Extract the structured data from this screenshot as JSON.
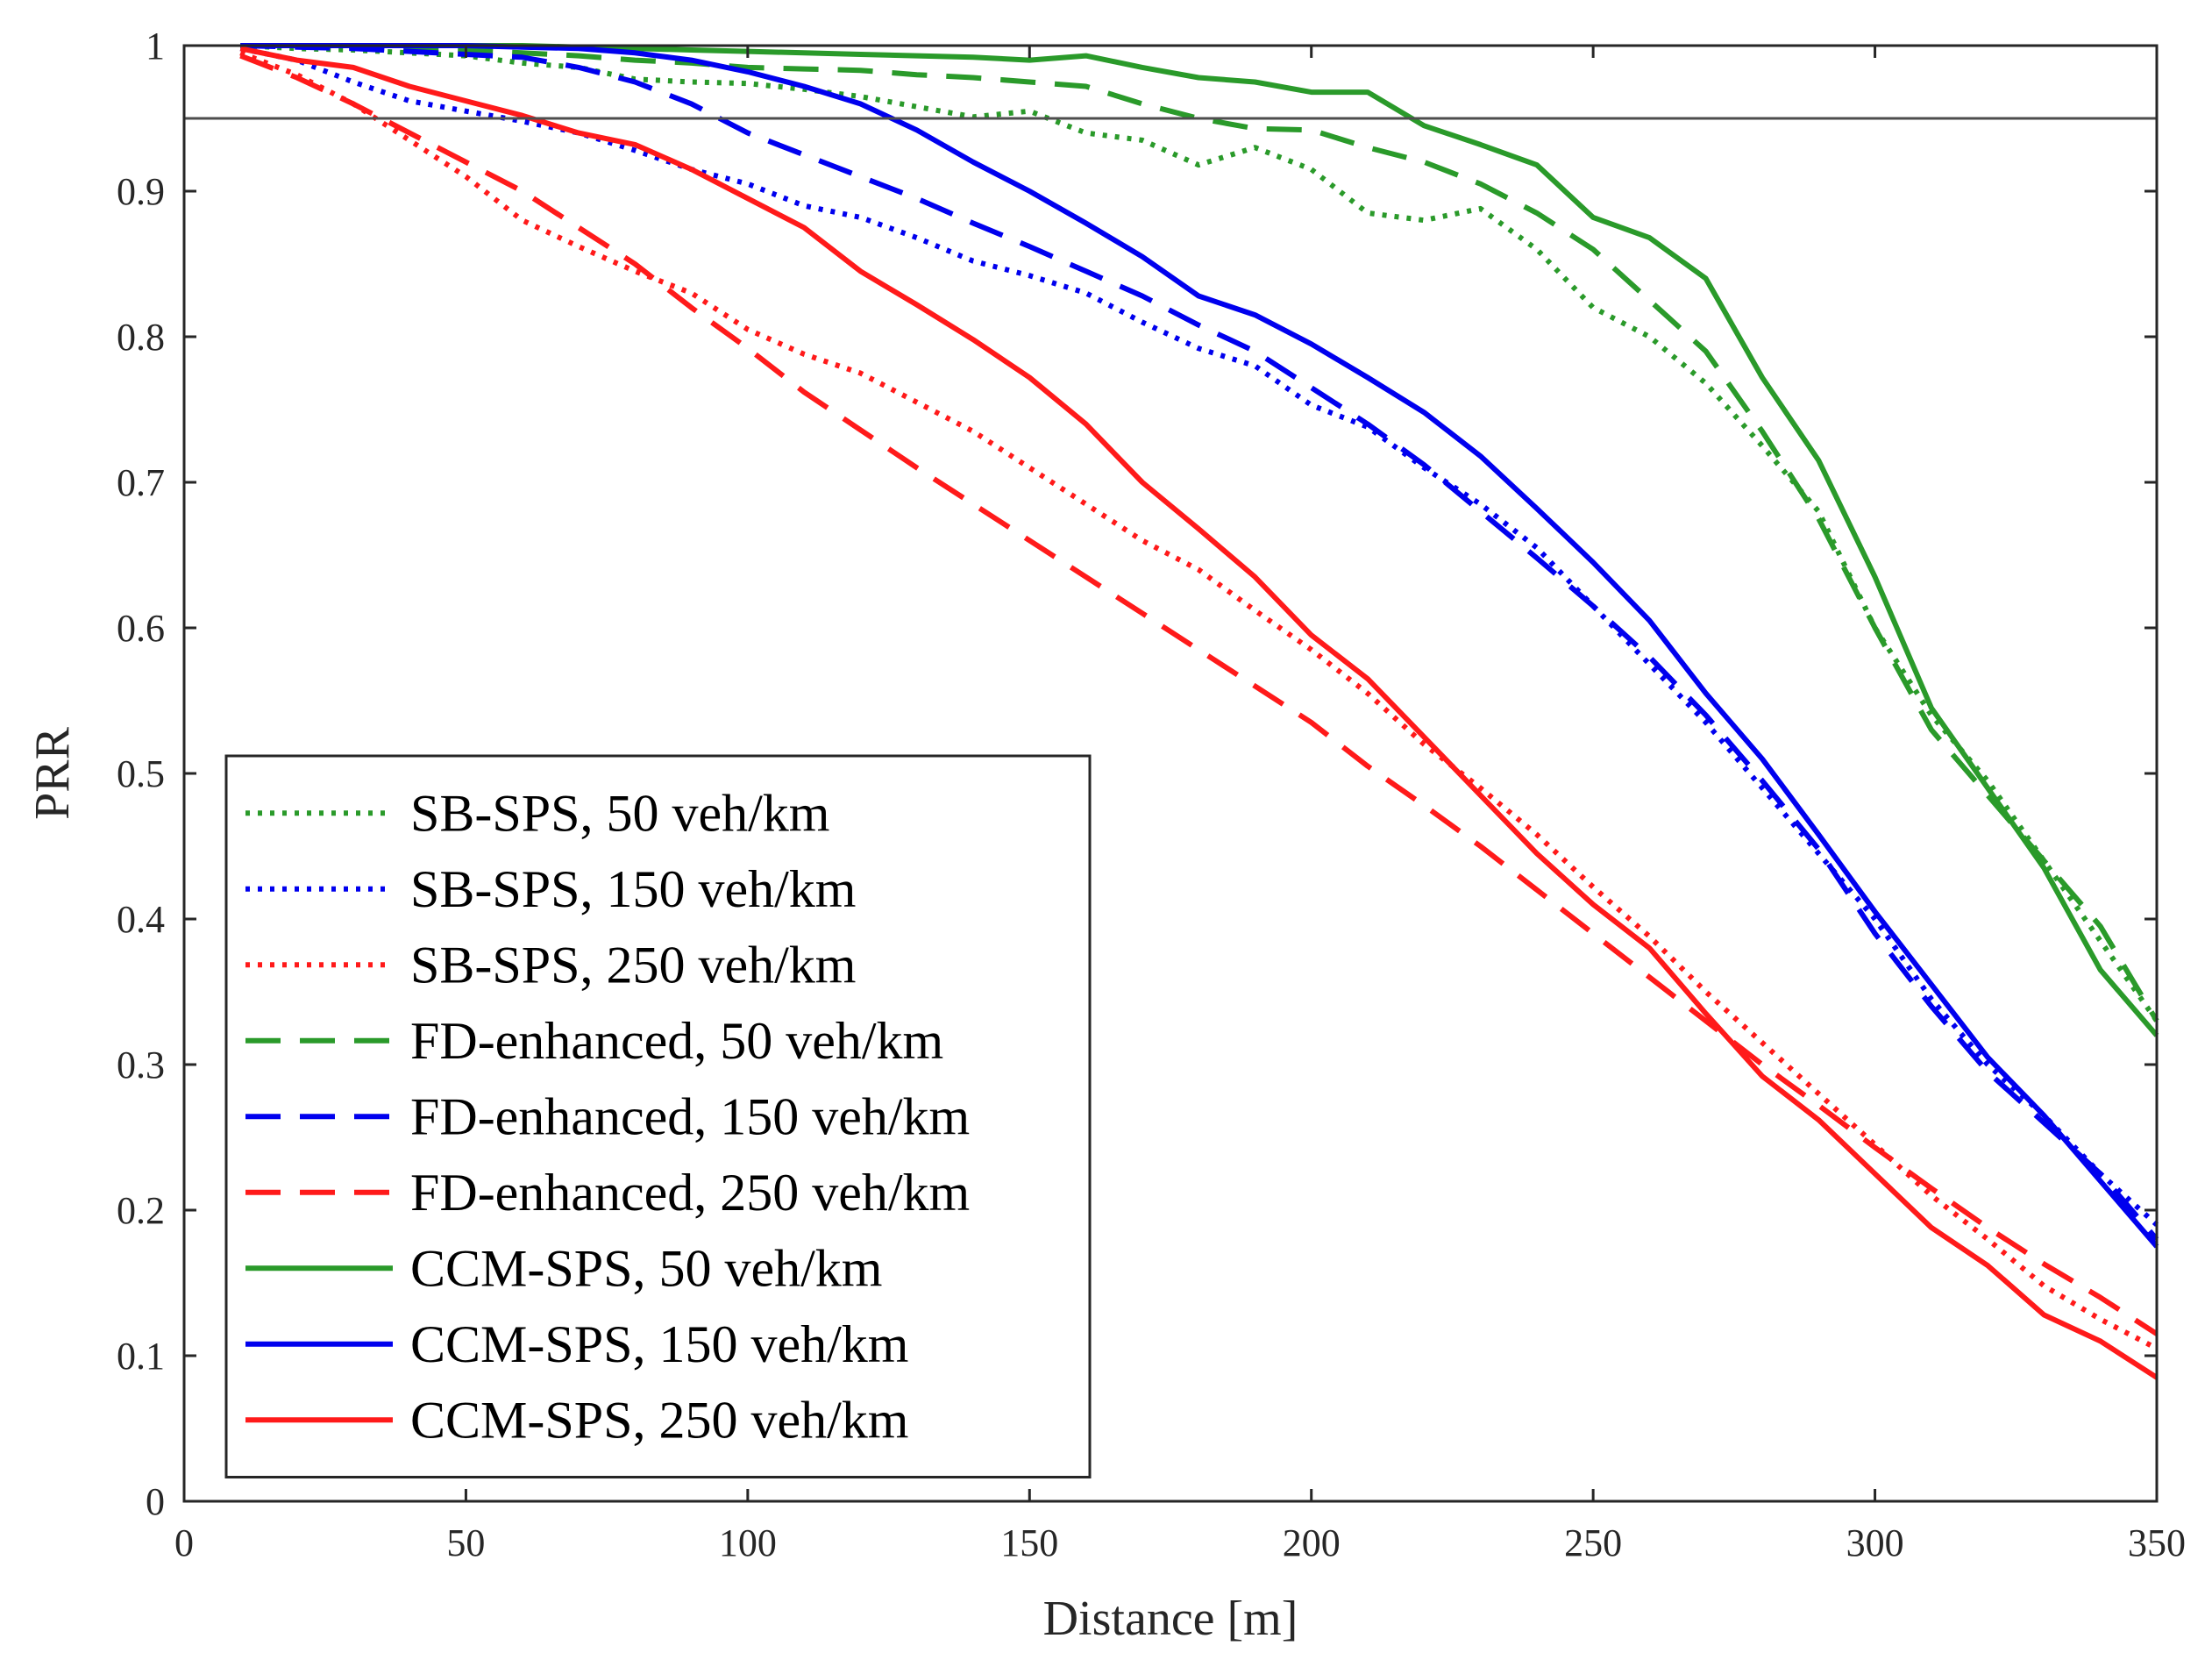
{
  "chart_data": {
    "type": "line",
    "title": "",
    "xlabel": "Distance [m]",
    "ylabel": "PRR",
    "xlim": [
      0,
      350
    ],
    "ylim": [
      0,
      1
    ],
    "xticks": [
      0,
      50,
      100,
      150,
      200,
      250,
      300,
      350
    ],
    "xtick_labels": [
      "0",
      "50",
      "100",
      "150",
      "200",
      "250",
      "300",
      "350"
    ],
    "yticks": [
      0,
      0.1,
      0.2,
      0.3,
      0.4,
      0.5,
      0.6,
      0.7,
      0.8,
      0.9,
      1
    ],
    "ytick_labels": [
      "0",
      "0.1",
      "0.2",
      "0.3",
      "0.4",
      "0.5",
      "0.6",
      "0.7",
      "0.8",
      "0.9",
      "1"
    ],
    "grid": false,
    "reference_line": {
      "y": 0.95,
      "color": "#4d4d4d"
    },
    "legend_position": "bottom-left",
    "x": [
      10,
      20,
      30,
      40,
      50,
      60,
      70,
      80,
      90,
      100,
      110,
      120,
      130,
      140,
      150,
      160,
      170,
      180,
      190,
      200,
      210,
      220,
      230,
      240,
      250,
      260,
      270,
      280,
      290,
      300,
      310,
      320,
      330,
      340,
      350
    ],
    "series": [
      {
        "name": "SB-SPS, 50 veh/km",
        "color": "#2a9a2a",
        "style": "dotted",
        "values": [
          1.0,
          0.998,
          0.997,
          0.995,
          0.993,
          0.988,
          0.985,
          0.977,
          0.975,
          0.974,
          0.97,
          0.965,
          0.958,
          0.951,
          0.955,
          0.94,
          0.935,
          0.918,
          0.93,
          0.915,
          0.885,
          0.88,
          0.888,
          0.86,
          0.82,
          0.8,
          0.768,
          0.725,
          0.68,
          0.6,
          0.54,
          0.495,
          0.44,
          0.385,
          0.33
        ]
      },
      {
        "name": "SB-SPS, 150 veh/km",
        "color": "#0000ee",
        "style": "dotted",
        "values": [
          0.998,
          0.99,
          0.975,
          0.962,
          0.955,
          0.948,
          0.94,
          0.928,
          0.915,
          0.905,
          0.89,
          0.882,
          0.868,
          0.852,
          0.842,
          0.83,
          0.81,
          0.792,
          0.78,
          0.753,
          0.738,
          0.71,
          0.685,
          0.655,
          0.615,
          0.575,
          0.535,
          0.49,
          0.445,
          0.4,
          0.345,
          0.3,
          0.265,
          0.225,
          0.19
        ]
      },
      {
        "name": "SB-SPS, 250 veh/km",
        "color": "#ff1a1a",
        "style": "dotted",
        "values": [
          0.995,
          0.98,
          0.96,
          0.935,
          0.91,
          0.88,
          0.862,
          0.845,
          0.83,
          0.805,
          0.788,
          0.775,
          0.755,
          0.735,
          0.71,
          0.685,
          0.66,
          0.64,
          0.612,
          0.585,
          0.555,
          0.52,
          0.49,
          0.458,
          0.422,
          0.388,
          0.35,
          0.315,
          0.28,
          0.245,
          0.21,
          0.18,
          0.148,
          0.125,
          0.105
        ]
      },
      {
        "name": "FD-enhanced, 50 veh/km",
        "color": "#2a9a2a",
        "style": "dashed",
        "values": [
          1.0,
          1.0,
          0.999,
          0.998,
          0.997,
          0.995,
          0.993,
          0.99,
          0.988,
          0.985,
          0.984,
          0.983,
          0.98,
          0.978,
          0.975,
          0.972,
          0.96,
          0.95,
          0.943,
          0.942,
          0.93,
          0.92,
          0.905,
          0.885,
          0.86,
          0.825,
          0.79,
          0.735,
          0.675,
          0.6,
          0.53,
          0.485,
          0.44,
          0.395,
          0.33
        ]
      },
      {
        "name": "FD-enhanced, 150 veh/km",
        "color": "#0000ee",
        "style": "dashed",
        "values": [
          1.0,
          0.999,
          0.998,
          0.996,
          0.994,
          0.992,
          0.985,
          0.975,
          0.96,
          0.94,
          0.925,
          0.91,
          0.895,
          0.878,
          0.862,
          0.845,
          0.828,
          0.808,
          0.79,
          0.765,
          0.74,
          0.712,
          0.68,
          0.648,
          0.615,
          0.58,
          0.54,
          0.495,
          0.448,
          0.39,
          0.34,
          0.295,
          0.26,
          0.225,
          0.18
        ]
      },
      {
        "name": "FD-enhanced, 250 veh/km",
        "color": "#ff1a1a",
        "style": "dashed",
        "values": [
          0.993,
          0.978,
          0.96,
          0.94,
          0.92,
          0.9,
          0.875,
          0.85,
          0.82,
          0.792,
          0.762,
          0.736,
          0.71,
          0.685,
          0.66,
          0.635,
          0.61,
          0.585,
          0.56,
          0.535,
          0.505,
          0.478,
          0.45,
          0.42,
          0.39,
          0.36,
          0.33,
          0.3,
          0.272,
          0.243,
          0.215,
          0.188,
          0.163,
          0.14,
          0.115
        ]
      },
      {
        "name": "CCM-SPS, 50 veh/km",
        "color": "#2a9a2a",
        "style": "solid",
        "values": [
          1.0,
          1.0,
          1.0,
          1.0,
          1.0,
          1.0,
          0.999,
          0.998,
          0.997,
          0.996,
          0.995,
          0.994,
          0.993,
          0.992,
          0.99,
          0.993,
          0.985,
          0.978,
          0.975,
          0.968,
          0.968,
          0.945,
          0.932,
          0.918,
          0.882,
          0.868,
          0.84,
          0.772,
          0.715,
          0.635,
          0.545,
          0.49,
          0.435,
          0.365,
          0.32
        ]
      },
      {
        "name": "CCM-SPS, 150 veh/km",
        "color": "#0000ee",
        "style": "solid",
        "values": [
          1.0,
          1.0,
          1.0,
          1.0,
          1.0,
          0.999,
          0.998,
          0.995,
          0.99,
          0.982,
          0.972,
          0.96,
          0.942,
          0.92,
          0.9,
          0.878,
          0.855,
          0.828,
          0.815,
          0.795,
          0.772,
          0.748,
          0.718,
          0.682,
          0.645,
          0.605,
          0.555,
          0.51,
          0.458,
          0.405,
          0.355,
          0.305,
          0.265,
          0.22,
          0.175
        ]
      },
      {
        "name": "CCM-SPS, 250 veh/km",
        "color": "#ff1a1a",
        "style": "solid",
        "values": [
          0.998,
          0.99,
          0.985,
          0.972,
          0.962,
          0.952,
          0.94,
          0.932,
          0.915,
          0.895,
          0.875,
          0.845,
          0.822,
          0.798,
          0.772,
          0.74,
          0.7,
          0.668,
          0.635,
          0.595,
          0.565,
          0.525,
          0.485,
          0.445,
          0.41,
          0.38,
          0.335,
          0.292,
          0.262,
          0.225,
          0.188,
          0.162,
          0.128,
          0.11,
          0.085
        ]
      }
    ]
  }
}
